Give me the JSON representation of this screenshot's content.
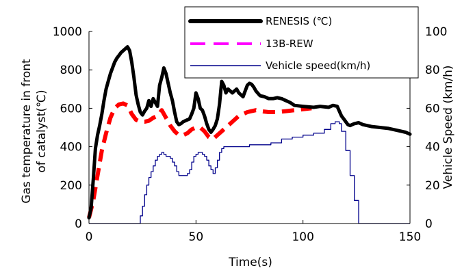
{
  "chart_data": {
    "type": "line",
    "xlabel": "Time(s)",
    "ylabel_lines": [
      "Gas temperature in front",
      "of catalyst(℃)"
    ],
    "y2label": "Vehicle Speed (km/h)",
    "xlim": [
      0,
      150
    ],
    "ylim": [
      0,
      1000
    ],
    "y2lim": [
      0,
      100
    ],
    "x_ticks": [
      "0",
      "50",
      "100",
      "150"
    ],
    "y_ticks": [
      "0",
      "200",
      "400",
      "600",
      "800",
      "1000"
    ],
    "y2_ticks": [
      "0",
      "20",
      "40",
      "60",
      "80",
      "100"
    ],
    "grid": false,
    "legend_position": "top-right",
    "series": [
      {
        "name": "RENESIS (℃)",
        "axis": "left",
        "color": "#000000",
        "style": "solid-thick",
        "points": [
          [
            0,
            30
          ],
          [
            1,
            80
          ],
          [
            2,
            230
          ],
          [
            3,
            390
          ],
          [
            4,
            460
          ],
          [
            5,
            510
          ],
          [
            6,
            570
          ],
          [
            7,
            640
          ],
          [
            8,
            700
          ],
          [
            9,
            740
          ],
          [
            10,
            780
          ],
          [
            11,
            810
          ],
          [
            12,
            840
          ],
          [
            13,
            860
          ],
          [
            14,
            875
          ],
          [
            15,
            890
          ],
          [
            16,
            900
          ],
          [
            17,
            910
          ],
          [
            18,
            920
          ],
          [
            19,
            900
          ],
          [
            20,
            840
          ],
          [
            21,
            760
          ],
          [
            22,
            670
          ],
          [
            23,
            620
          ],
          [
            24,
            580
          ],
          [
            25,
            565
          ],
          [
            26,
            585
          ],
          [
            27,
            600
          ],
          [
            28,
            640
          ],
          [
            29,
            610
          ],
          [
            30,
            650
          ],
          [
            31,
            630
          ],
          [
            32,
            610
          ],
          [
            33,
            720
          ],
          [
            34,
            760
          ],
          [
            35,
            810
          ],
          [
            36,
            780
          ],
          [
            37,
            730
          ],
          [
            38,
            680
          ],
          [
            39,
            640
          ],
          [
            40,
            580
          ],
          [
            41,
            530
          ],
          [
            42,
            515
          ],
          [
            43,
            520
          ],
          [
            44,
            530
          ],
          [
            45,
            535
          ],
          [
            46,
            540
          ],
          [
            47,
            545
          ],
          [
            48,
            570
          ],
          [
            49,
            600
          ],
          [
            50,
            680
          ],
          [
            51,
            650
          ],
          [
            52,
            600
          ],
          [
            53,
            590
          ],
          [
            54,
            560
          ],
          [
            55,
            520
          ],
          [
            56,
            490
          ],
          [
            57,
            475
          ],
          [
            58,
            490
          ],
          [
            59,
            510
          ],
          [
            60,
            545
          ],
          [
            61,
            620
          ],
          [
            62,
            740
          ],
          [
            63,
            720
          ],
          [
            64,
            680
          ],
          [
            65,
            700
          ],
          [
            66,
            690
          ],
          [
            67,
            680
          ],
          [
            68,
            690
          ],
          [
            69,
            700
          ],
          [
            70,
            680
          ],
          [
            71,
            670
          ],
          [
            72,
            660
          ],
          [
            73,
            690
          ],
          [
            74,
            720
          ],
          [
            75,
            730
          ],
          [
            76,
            725
          ],
          [
            77,
            710
          ],
          [
            78,
            690
          ],
          [
            80,
            665
          ],
          [
            82,
            660
          ],
          [
            84,
            650
          ],
          [
            86,
            650
          ],
          [
            88,
            655
          ],
          [
            90,
            650
          ],
          [
            92,
            640
          ],
          [
            94,
            630
          ],
          [
            96,
            615
          ],
          [
            100,
            610
          ],
          [
            105,
            605
          ],
          [
            108,
            610
          ],
          [
            112,
            605
          ],
          [
            114,
            615
          ],
          [
            116,
            610
          ],
          [
            118,
            560
          ],
          [
            119,
            545
          ],
          [
            120,
            530
          ],
          [
            121,
            515
          ],
          [
            122,
            510
          ],
          [
            124,
            520
          ],
          [
            126,
            525
          ],
          [
            128,
            515
          ],
          [
            132,
            505
          ],
          [
            136,
            500
          ],
          [
            140,
            495
          ],
          [
            144,
            485
          ],
          [
            148,
            475
          ],
          [
            150,
            465
          ]
        ]
      },
      {
        "name": "13B-REW",
        "axis": "left",
        "color": "#ff0000",
        "style": "dashed",
        "points": [
          [
            0,
            30
          ],
          [
            2,
            120
          ],
          [
            4,
            250
          ],
          [
            6,
            380
          ],
          [
            8,
            470
          ],
          [
            10,
            550
          ],
          [
            12,
            600
          ],
          [
            14,
            620
          ],
          [
            16,
            625
          ],
          [
            18,
            615
          ],
          [
            20,
            570
          ],
          [
            22,
            540
          ],
          [
            24,
            530
          ],
          [
            26,
            530
          ],
          [
            28,
            535
          ],
          [
            30,
            550
          ],
          [
            32,
            560
          ],
          [
            34,
            590
          ],
          [
            36,
            550
          ],
          [
            38,
            510
          ],
          [
            40,
            480
          ],
          [
            42,
            460
          ],
          [
            44,
            460
          ],
          [
            46,
            470
          ],
          [
            48,
            490
          ],
          [
            50,
            500
          ],
          [
            52,
            500
          ],
          [
            54,
            480
          ],
          [
            56,
            450
          ],
          [
            58,
            440
          ],
          [
            60,
            460
          ],
          [
            62,
            480
          ],
          [
            64,
            500
          ],
          [
            66,
            520
          ],
          [
            68,
            540
          ],
          [
            70,
            560
          ],
          [
            72,
            570
          ],
          [
            74,
            580
          ],
          [
            76,
            585
          ],
          [
            78,
            590
          ],
          [
            80,
            585
          ],
          [
            84,
            580
          ],
          [
            88,
            580
          ],
          [
            92,
            585
          ],
          [
            96,
            590
          ],
          [
            100,
            595
          ],
          [
            104,
            600
          ]
        ]
      },
      {
        "name": "Vehicle speed(km/h)",
        "axis": "right",
        "color": "#00008b",
        "style": "solid-thin",
        "points": [
          [
            0,
            0
          ],
          [
            23,
            0
          ],
          [
            24,
            4
          ],
          [
            25,
            9
          ],
          [
            26,
            15
          ],
          [
            27,
            20
          ],
          [
            28,
            24
          ],
          [
            29,
            27
          ],
          [
            30,
            30
          ],
          [
            31,
            33
          ],
          [
            32,
            35
          ],
          [
            33,
            36
          ],
          [
            34,
            37
          ],
          [
            35,
            36
          ],
          [
            36,
            35
          ],
          [
            37,
            35
          ],
          [
            38,
            34
          ],
          [
            39,
            32
          ],
          [
            40,
            30
          ],
          [
            41,
            27
          ],
          [
            42,
            25
          ],
          [
            43,
            25
          ],
          [
            44,
            25
          ],
          [
            45,
            25
          ],
          [
            46,
            26
          ],
          [
            47,
            28
          ],
          [
            48,
            32
          ],
          [
            49,
            35
          ],
          [
            50,
            36
          ],
          [
            51,
            37
          ],
          [
            52,
            37
          ],
          [
            53,
            36
          ],
          [
            54,
            35
          ],
          [
            55,
            33
          ],
          [
            56,
            30
          ],
          [
            57,
            28
          ],
          [
            58,
            26
          ],
          [
            59,
            29
          ],
          [
            60,
            33
          ],
          [
            61,
            37
          ],
          [
            62,
            39
          ],
          [
            63,
            40
          ],
          [
            65,
            40
          ],
          [
            70,
            40
          ],
          [
            75,
            41
          ],
          [
            80,
            41
          ],
          [
            85,
            42
          ],
          [
            90,
            44
          ],
          [
            95,
            45
          ],
          [
            100,
            46
          ],
          [
            105,
            47
          ],
          [
            110,
            49
          ],
          [
            113,
            52
          ],
          [
            115,
            53
          ],
          [
            117,
            52
          ],
          [
            118,
            48
          ],
          [
            120,
            38
          ],
          [
            122,
            25
          ],
          [
            124,
            12
          ],
          [
            126,
            0
          ],
          [
            150,
            0
          ]
        ]
      }
    ]
  }
}
